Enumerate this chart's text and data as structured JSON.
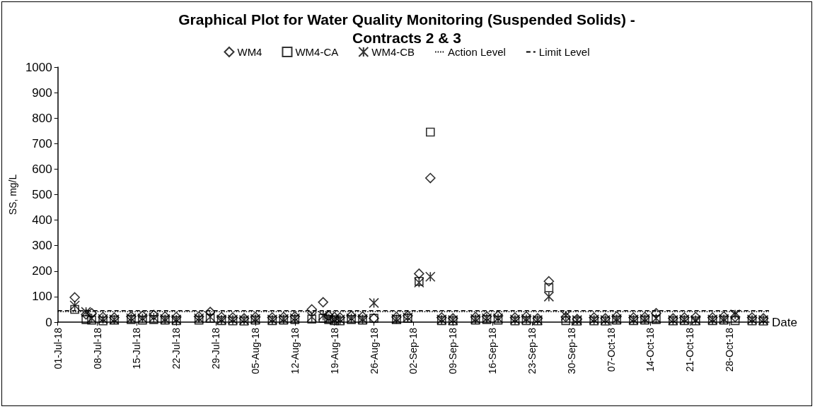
{
  "chart_data": {
    "type": "scatter",
    "title": "Graphical Plot for Water Quality Monitoring (Suspended Solids) -\nContracts 2 & 3",
    "xlabel": "Date",
    "ylabel": "SS, mg/L",
    "x": [
      "--07-04",
      "--07-06",
      "--07-07",
      "--07-09",
      "--07-11",
      "--07-14",
      "--07-16",
      "--07-18",
      "--07-20",
      "--07-22",
      "--07-26",
      "--07-28",
      "--07-30",
      "--08-01",
      "--08-03",
      "--08-05",
      "--08-08",
      "--08-10",
      "--08-12",
      "--08-15",
      "--08-17",
      "--08-18",
      "--08-19",
      "--08-20",
      "--08-22",
      "--08-24",
      "--08-26",
      "--08-30",
      "--09-01",
      "--09-03",
      "--09-05",
      "--09-07",
      "--09-09",
      "--09-13",
      "--09-15",
      "--09-17",
      "--09-20",
      "--09-22",
      "--09-24",
      "--09-26",
      "--09-29",
      "--10-01",
      "--10-04",
      "--10-06",
      "--10-08",
      "--10-11",
      "--10-13",
      "--10-15",
      "--10-18",
      "--10-20",
      "--10-22",
      "--10-25",
      "--10-27",
      "--10-29",
      "--11-01",
      "--11-03"
    ],
    "series": [
      {
        "name": "WM4",
        "color": "#000000",
        "marker": "diamond",
        "values": [
          97,
          30,
          35,
          20,
          18,
          22,
          25,
          28,
          22,
          20,
          22,
          40,
          20,
          18,
          15,
          20,
          18,
          20,
          22,
          50,
          78,
          25,
          20,
          18,
          25,
          22,
          15,
          20,
          25,
          190,
          565,
          18,
          15,
          20,
          22,
          25,
          18,
          22,
          15,
          160,
          20,
          12,
          18,
          15,
          22,
          18,
          20,
          35,
          15,
          18,
          20,
          18,
          22,
          20,
          18,
          15
        ]
      },
      {
        "name": "WM4-CA",
        "color": "#000000",
        "marker": "square",
        "values": [
          50,
          10,
          8,
          5,
          8,
          10,
          8,
          10,
          8,
          6,
          8,
          15,
          6,
          5,
          4,
          8,
          6,
          8,
          10,
          12,
          15,
          10,
          6,
          5,
          10,
          8,
          15,
          10,
          15,
          160,
          745,
          6,
          5,
          8,
          10,
          8,
          5,
          6,
          5,
          135,
          6,
          4,
          5,
          4,
          8,
          6,
          8,
          10,
          5,
          6,
          5,
          6,
          8,
          6,
          5,
          4
        ]
      },
      {
        "name": "WM4-CB",
        "color": "#000000",
        "marker": "cross",
        "values": [
          65,
          40,
          15,
          12,
          10,
          15,
          15,
          18,
          12,
          10,
          15,
          20,
          10,
          10,
          8,
          12,
          10,
          12,
          15,
          20,
          25,
          15,
          10,
          10,
          15,
          12,
          75,
          12,
          18,
          155,
          178,
          10,
          8,
          12,
          15,
          15,
          10,
          12,
          8,
          100,
          25,
          8,
          10,
          8,
          12,
          10,
          12,
          15,
          8,
          10,
          8,
          10,
          12,
          30,
          10,
          8
        ]
      }
    ],
    "xlim": [
      "--07-01",
      "--11-04"
    ],
    "xticks": [
      {
        "value": "--07-01",
        "label": "01-Jul-18"
      },
      {
        "value": "--07-08",
        "label": "08-Jul-18"
      },
      {
        "value": "--07-15",
        "label": "15-Jul-18"
      },
      {
        "value": "--07-22",
        "label": "22-Jul-18"
      },
      {
        "value": "--07-29",
        "label": "29-Jul-18"
      },
      {
        "value": "--08-05",
        "label": "05-Aug-18"
      },
      {
        "value": "--08-12",
        "label": "12-Aug-18"
      },
      {
        "value": "--08-19",
        "label": "19-Aug-18"
      },
      {
        "value": "--08-26",
        "label": "26-Aug-18"
      },
      {
        "value": "--09-02",
        "label": "02-Sep-18"
      },
      {
        "value": "--09-09",
        "label": "09-Sep-18"
      },
      {
        "value": "--09-16",
        "label": "16-Sep-18"
      },
      {
        "value": "--09-23",
        "label": "23-Sep-18"
      },
      {
        "value": "--09-30",
        "label": "30-Sep-18"
      },
      {
        "value": "--10-07",
        "label": "07-Oct-18"
      },
      {
        "value": "--10-14",
        "label": "14-Oct-18"
      },
      {
        "value": "--10-21",
        "label": "21-Oct-18"
      },
      {
        "value": "--10-28",
        "label": "28-Oct-18"
      }
    ],
    "ylim": [
      0,
      1000
    ],
    "yticks": [
      0,
      100,
      200,
      300,
      400,
      500,
      600,
      700,
      800,
      900,
      1000
    ],
    "ref_lines": [
      {
        "axis": "y",
        "value": 41,
        "label": "Action Level",
        "color": "#000000",
        "line_style": "dotted"
      },
      {
        "axis": "y",
        "value": 45,
        "label": "Limit Level",
        "color": "#000000",
        "line_style": "dashed"
      }
    ],
    "grid": false,
    "legend": "top"
  }
}
